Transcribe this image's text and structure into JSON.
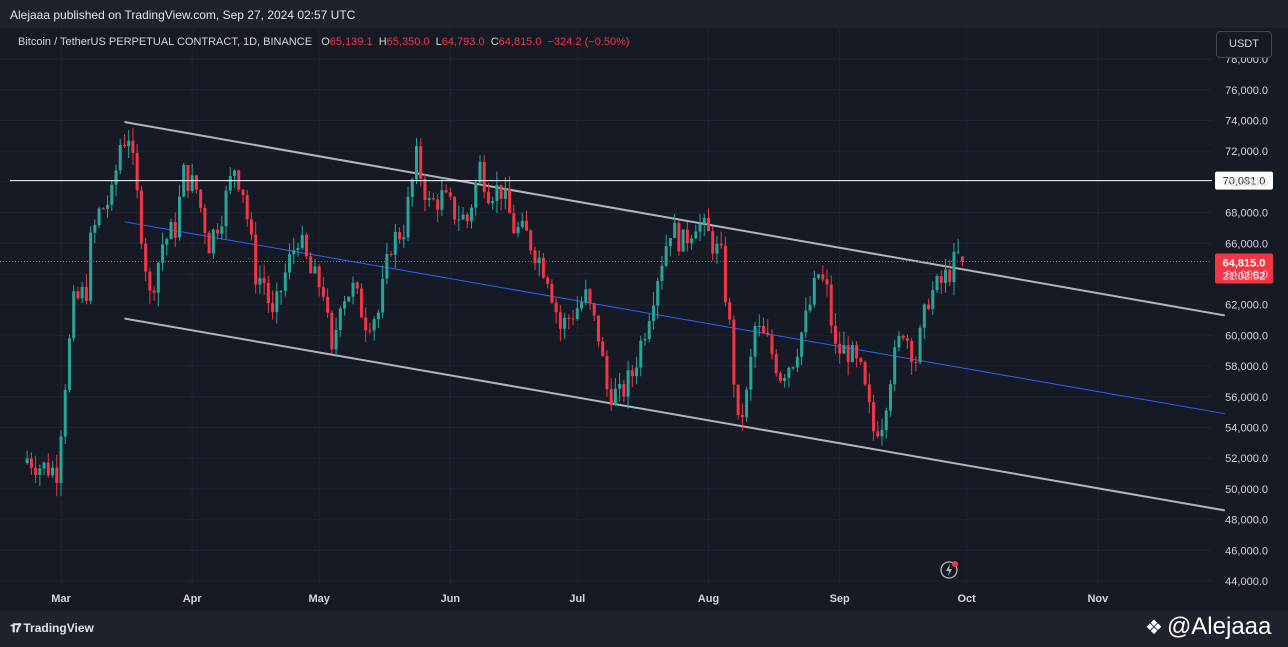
{
  "header": {
    "published_text": "Alejaaa published on TradingView.com, Sep 27, 2024 02:57 UTC"
  },
  "legend": {
    "symbol": "Bitcoin / TetherUS PERPETUAL CONTRACT, 1D, BINANCE",
    "o_label": "O",
    "o_value": "65,139.1",
    "h_label": "H",
    "h_value": "65,350.0",
    "l_label": "L",
    "l_value": "64,793.0",
    "c_label": "C",
    "c_value": "64,815.0",
    "change": "−324.2 (−0.50%)"
  },
  "currency_label": "USDT",
  "footer": {
    "tv_brand": "TradingView",
    "author": "@Alejaaa"
  },
  "colors": {
    "bg": "#161a25",
    "up": "#26a69a",
    "down": "#f23645",
    "channel": "#b2b5be",
    "midline": "#2962ff",
    "level": "#ffffff",
    "grid": "#1f2430"
  },
  "chart_data": {
    "type": "candlestick",
    "y_axis_labels": [
      "44,000.0",
      "46,000.0",
      "48,000.0",
      "50,000.0",
      "52,000.0",
      "54,000.0",
      "56,000.0",
      "58,000.0",
      "60,000.0",
      "62,000.0",
      "64,000.0",
      "66,000.0",
      "68,000.0",
      "70,000.0",
      "72,000.0",
      "74,000.0",
      "76,000.0",
      "78,000.0"
    ],
    "y_axis_values": [
      44000,
      46000,
      48000,
      50000,
      52000,
      54000,
      56000,
      58000,
      60000,
      62000,
      64000,
      66000,
      68000,
      70000,
      72000,
      74000,
      76000,
      78000
    ],
    "ylim": [
      43000,
      79300
    ],
    "x_axis_labels": [
      "Mar",
      "Apr",
      "May",
      "Jun",
      "Jul",
      "Aug",
      "Sep",
      "Oct",
      "Nov"
    ],
    "x_axis_days": [
      0,
      31,
      61,
      92,
      122,
      153,
      184,
      214,
      245
    ],
    "x_origin_date": "2024-02-27",
    "xlim": [
      -12,
      275
    ],
    "last_price_label": "64,815.0",
    "countdown_label": "21:02:52",
    "horizontal_level": {
      "price": 70081.0,
      "label": "70,081.0"
    },
    "channel": {
      "upper": {
        "start_date": "2024-03-13",
        "start_price": 73900,
        "end_date": "2024-11-28",
        "end_price": 61300
      },
      "middle": {
        "start_date": "2024-03-13",
        "start_price": 67400,
        "end_date": "2024-11-28",
        "end_price": 54900
      },
      "lower": {
        "start_date": "2024-03-13",
        "start_price": 61100,
        "end_date": "2024-11-28",
        "end_price": 48600
      }
    },
    "candles_close_path": [
      [
        "2024-02-19",
        52000
      ],
      [
        "2024-02-22",
        51500
      ],
      [
        "2024-02-26",
        51200
      ],
      [
        "2024-02-28",
        57000
      ],
      [
        "2024-03-01",
        62000
      ],
      [
        "2024-03-04",
        63000
      ],
      [
        "2024-03-05",
        66000
      ],
      [
        "2024-03-07",
        68000
      ],
      [
        "2024-03-10",
        69000
      ],
      [
        "2024-03-12",
        72500
      ],
      [
        "2024-03-14",
        73100
      ],
      [
        "2024-03-16",
        69000
      ],
      [
        "2024-03-19",
        62500
      ],
      [
        "2024-03-22",
        66000
      ],
      [
        "2024-03-25",
        67000
      ],
      [
        "2024-03-27",
        70500
      ],
      [
        "2024-03-30",
        69500
      ],
      [
        "2024-04-02",
        66000
      ],
      [
        "2024-04-05",
        68000
      ],
      [
        "2024-04-08",
        71000
      ],
      [
        "2024-04-10",
        69500
      ],
      [
        "2024-04-13",
        64000
      ],
      [
        "2024-04-15",
        63500
      ],
      [
        "2024-04-17",
        61000
      ],
      [
        "2024-04-20",
        64000
      ],
      [
        "2024-04-23",
        66500
      ],
      [
        "2024-04-26",
        64000
      ],
      [
        "2024-04-29",
        63000
      ],
      [
        "2024-05-01",
        58500
      ],
      [
        "2024-05-03",
        62500
      ],
      [
        "2024-05-06",
        63000
      ],
      [
        "2024-05-09",
        61000
      ],
      [
        "2024-05-12",
        61500
      ],
      [
        "2024-05-15",
        66000
      ],
      [
        "2024-05-18",
        67000
      ],
      [
        "2024-05-21",
        71500
      ],
      [
        "2024-05-24",
        68500
      ],
      [
        "2024-05-27",
        69000
      ],
      [
        "2024-05-30",
        68000
      ],
      [
        "2024-06-02",
        67500
      ],
      [
        "2024-06-05",
        71000
      ],
      [
        "2024-06-07",
        69500
      ],
      [
        "2024-06-10",
        69500
      ],
      [
        "2024-06-13",
        67000
      ],
      [
        "2024-06-16",
        66500
      ],
      [
        "2024-06-19",
        65000
      ],
      [
        "2024-06-21",
        64000
      ],
      [
        "2024-06-24",
        60500
      ],
      [
        "2024-06-27",
        61500
      ],
      [
        "2024-06-30",
        62500
      ],
      [
        "2024-07-03",
        60000
      ],
      [
        "2024-07-05",
        56500
      ],
      [
        "2024-07-08",
        56000
      ],
      [
        "2024-07-11",
        57500
      ],
      [
        "2024-07-14",
        60500
      ],
      [
        "2024-07-17",
        64000
      ],
      [
        "2024-07-20",
        67000
      ],
      [
        "2024-07-23",
        66000
      ],
      [
        "2024-07-26",
        67500
      ],
      [
        "2024-07-29",
        66500
      ],
      [
        "2024-08-01",
        65000
      ],
      [
        "2024-08-03",
        60500
      ],
      [
        "2024-08-05",
        54000
      ],
      [
        "2024-08-07",
        56000
      ],
      [
        "2024-08-09",
        60500
      ],
      [
        "2024-08-12",
        59500
      ],
      [
        "2024-08-15",
        57500
      ],
      [
        "2024-08-18",
        58500
      ],
      [
        "2024-08-21",
        61000
      ],
      [
        "2024-08-24",
        64000
      ],
      [
        "2024-08-26",
        62800
      ],
      [
        "2024-08-28",
        59000
      ],
      [
        "2024-08-31",
        59000
      ],
      [
        "2024-09-03",
        57500
      ],
      [
        "2024-09-06",
        53800
      ],
      [
        "2024-09-08",
        54500
      ],
      [
        "2024-09-10",
        57500
      ],
      [
        "2024-09-13",
        60500
      ],
      [
        "2024-09-16",
        58500
      ],
      [
        "2024-09-19",
        62500
      ],
      [
        "2024-09-22",
        63400
      ],
      [
        "2024-09-24",
        64200
      ],
      [
        "2024-09-26",
        65139.1
      ],
      [
        "2024-09-27",
        64815.0
      ]
    ]
  }
}
